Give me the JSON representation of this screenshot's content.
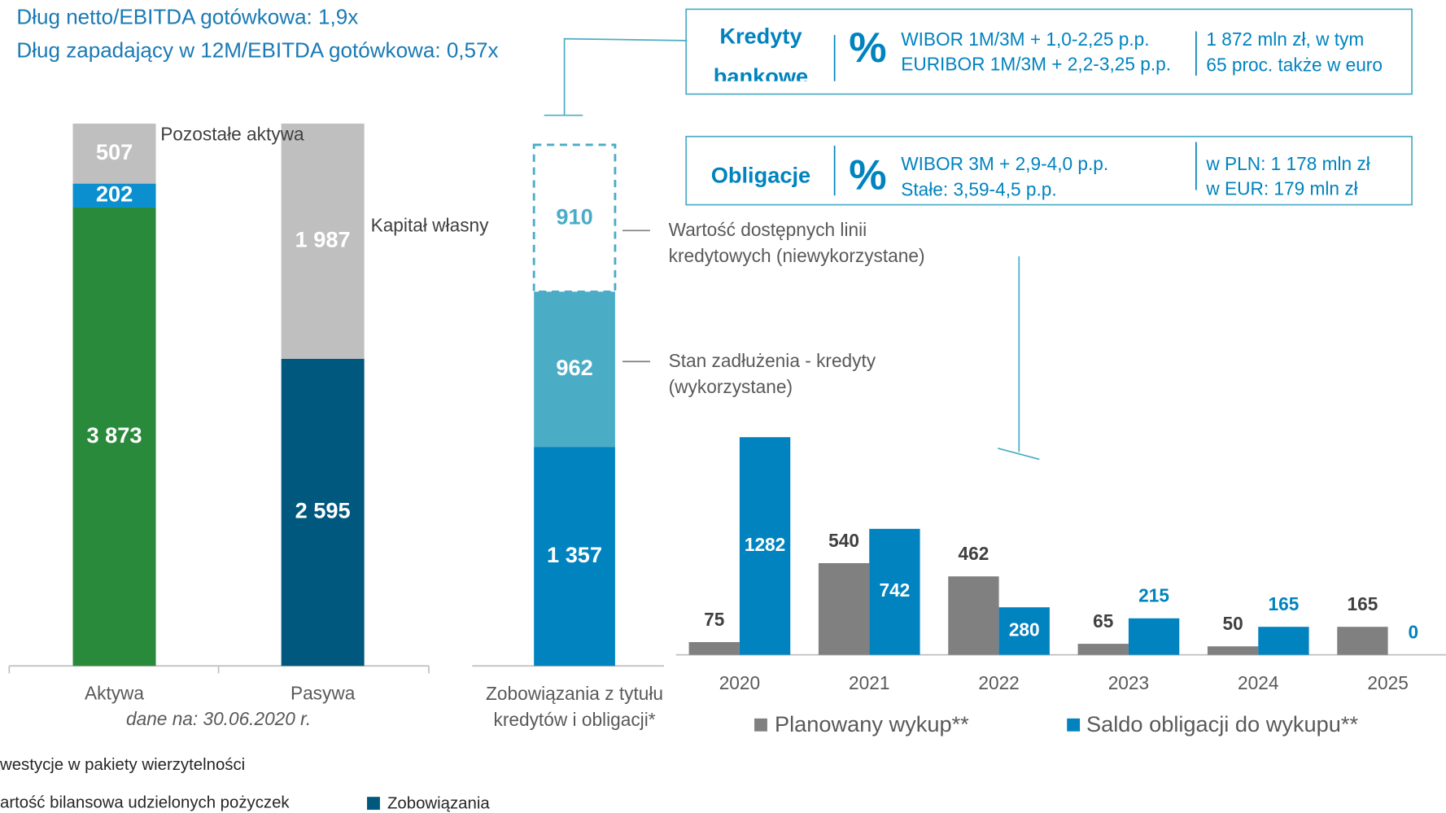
{
  "header": {
    "lines": [
      "Dług netto/EBITDA gotówkowa: 1,9x",
      "Dług zapadający w 12M/EBITDA gotówkowa: 0,57x"
    ]
  },
  "boxes": [
    {
      "title": "Kredyty bankowe",
      "symbol": "%",
      "rates": [
        "WIBOR 1M/3M + 1,0-2,25 p.p.",
        "EURIBOR 1M/3M + 2,2-3,25 p.p."
      ],
      "amounts": [
        "1 872 mln zł, w tym",
        "65 proc. także w euro"
      ]
    },
    {
      "title": "Obligacje",
      "symbol": "%",
      "rates": [
        "WIBOR 3M + 2,9-4,0 p.p.",
        "Stałe: 3,59-4,5 p.p."
      ],
      "amounts": [
        "w PLN: 1 178 mln zł",
        "w EUR:  179 mln zł"
      ]
    }
  ],
  "chart_data": [
    {
      "type": "stacked-bar",
      "categories": [
        "Aktywa",
        "Pasywa"
      ],
      "note": "dane na: 30.06.2020 r.",
      "series": [
        {
          "name": "westycje w pakiety wierzytelności",
          "color": "#2a8a3b",
          "values": [
            3873,
            null
          ],
          "value_labels": [
            "3 873",
            null
          ]
        },
        {
          "name": "artość bilansowa udzielonych pożyczek",
          "color": "#0b8fcf",
          "values": [
            202,
            null
          ]
        },
        {
          "name": "Pozostałe aktywa",
          "color": "#bfbfbf",
          "values": [
            507,
            null
          ]
        },
        {
          "name": "Zobowiązania",
          "color": "#00587f",
          "values": [
            null,
            2595
          ],
          "value_labels": [
            null,
            "2 595"
          ]
        },
        {
          "name": "Kapitał własny",
          "color": "#bfbfbf",
          "values": [
            null,
            1987
          ],
          "value_labels": [
            null,
            "1 987"
          ]
        }
      ]
    },
    {
      "type": "stacked-bar",
      "categories": [
        "Zobowiązania z tytułu kredytów i obligacji*"
      ],
      "series": [
        {
          "color": "#0083bf",
          "values": [
            1357
          ],
          "value_labels": [
            "1 357"
          ]
        },
        {
          "name": "Stan zadłużenia - kredyty (wykorzystane)",
          "color": "#4bacc6",
          "values": [
            962
          ]
        },
        {
          "name": "Wartość dostępnych linii kredytowych (niewykorzystane)",
          "color": "#4bacc6",
          "style": "dashed",
          "values": [
            910
          ]
        }
      ]
    },
    {
      "type": "grouped-bar",
      "categories": [
        "2020",
        "2021",
        "2022",
        "2023",
        "2024",
        "2025"
      ],
      "series": [
        {
          "name": "Planowany wykup**",
          "color": "#808080",
          "values": [
            75,
            540,
            462,
            65,
            50,
            165
          ]
        },
        {
          "name": "Saldo obligacji do wykupu**",
          "color": "#0083bf",
          "values": [
            1282,
            742,
            280,
            215,
            165,
            0
          ]
        }
      ]
    }
  ]
}
